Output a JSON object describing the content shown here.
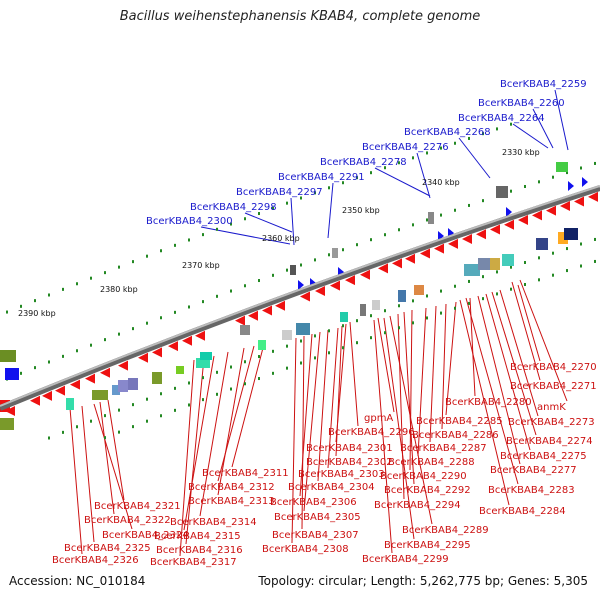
{
  "title": "Bacillus weihenstephanensis KBAB4, complete genome",
  "footer": {
    "accession": "Accession: NC_010184",
    "topology": "Topology: circular; Length: 5,262,775 bp; Genes: 5,305"
  },
  "colors": {
    "backbone": "#888888",
    "forward_strand_gene": "#ee1111",
    "reverse_strand_gene": "#1111ee",
    "scale_tick": "#228822",
    "upper_label": "#1a1acc",
    "lower_label": "#cc1111"
  },
  "scale_labels": [
    "2330 kbp",
    "2340 kbp",
    "2350 kbp",
    "2360 kbp",
    "2370 kbp",
    "2380 kbp",
    "2390 kbp"
  ],
  "upper_labels": [
    "BcerKBAB4_2259",
    "BcerKBAB4_2260",
    "BcerKBAB4_2264",
    "BcerKBAB4_2268",
    "BcerKBAB4_2276",
    "BcerKBAB4_2278",
    "BcerKBAB4_2291",
    "BcerKBAB4_2297",
    "BcerKBAB4_2298",
    "BcerKBAB4_2300"
  ],
  "lower_labels": [
    "BcerKBAB4_2270",
    "BcerKBAB4_2271",
    "anmK",
    "BcerKBAB4_2273",
    "BcerKBAB4_2274",
    "BcerKBAB4_2275",
    "BcerKBAB4_2277",
    "BcerKBAB4_2280",
    "BcerKBAB4_2285",
    "BcerKBAB4_2286",
    "BcerKBAB4_2287",
    "BcerKBAB4_2288",
    "BcerKBAB4_2290",
    "BcerKBAB4_2292",
    "BcerKBAB4_2294",
    "BcerKBAB4_2283",
    "BcerKBAB4_2284",
    "gpmA",
    "BcerKBAB4_2296",
    "BcerKBAB4_2301",
    "BcerKBAB4_2302",
    "BcerKBAB4_2303",
    "BcerKBAB4_2304",
    "BcerKBAB4_2305",
    "BcerKBAB4_2306",
    "BcerKBAB4_2307",
    "BcerKBAB4_2308",
    "BcerKBAB4_2289",
    "BcerKBAB4_2295",
    "BcerKBAB4_2299",
    "BcerKBAB4_2311",
    "BcerKBAB4_2312",
    "BcerKBAB4_2313",
    "BcerKBAB4_2314",
    "BcerKBAB4_2315",
    "BcerKBAB4_2316",
    "BcerKBAB4_2317",
    "BcerKBAB4_2321",
    "BcerKBAB4_2322",
    "BcerKBAB4_2324",
    "BcerKBAB4_2325",
    "BcerKBAB4_2326"
  ]
}
